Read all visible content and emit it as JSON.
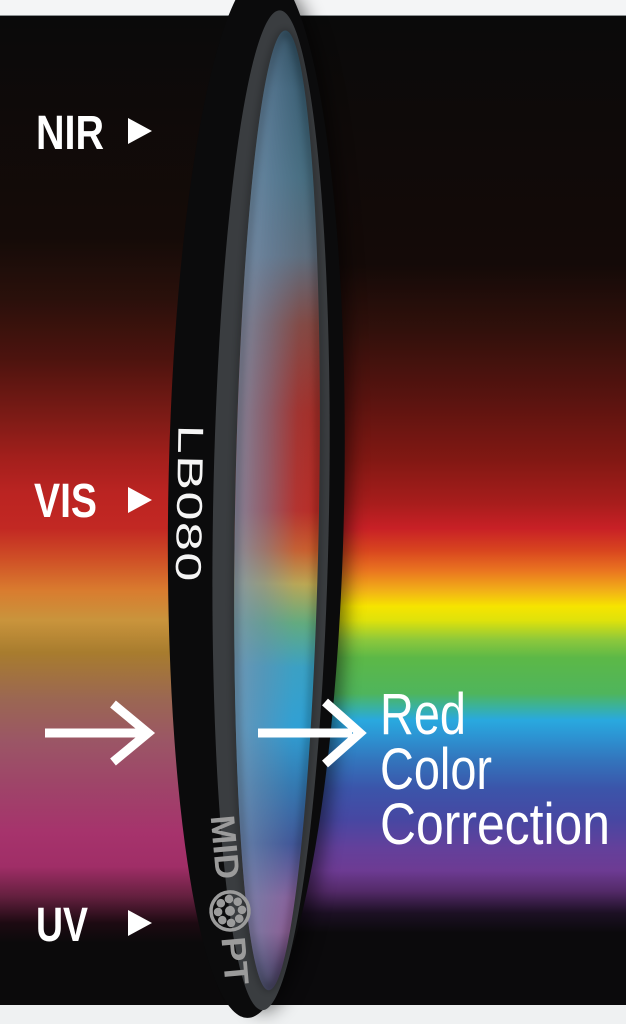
{
  "spectrum_labels": {
    "nir": "NIR",
    "vis": "VIS",
    "uv": "UV"
  },
  "ring": {
    "model": "LB080",
    "brand_prefix": "MID",
    "brand_suffix": "PT"
  },
  "caption": {
    "line1": "Red",
    "line2": "Color",
    "line3": "Correction"
  },
  "colors": {
    "label_text": "#ffffff",
    "arrow": "#ffffff",
    "ring_black": "#0b0b0c",
    "ring_bevel": "#3a3d40",
    "brand_gray": "#9b9b9b",
    "model_text": "#f5f5f5",
    "top_strip": "#f4f5f6",
    "top_strip_edge": "#8d9294",
    "bottom_strip": "#eff1f2"
  },
  "gradients": {
    "left_spectrum": [
      {
        "o": 0,
        "c": "#0a0a0a"
      },
      {
        "o": 0.225,
        "c": "#150b08"
      },
      {
        "o": 0.286,
        "c": "#2a100b"
      },
      {
        "o": 0.346,
        "c": "#4c130e"
      },
      {
        "o": 0.407,
        "c": "#7e1b16"
      },
      {
        "o": 0.447,
        "c": "#a31f1c"
      },
      {
        "o": 0.483,
        "c": "#bb2422"
      },
      {
        "o": 0.518,
        "c": "#c22823"
      },
      {
        "o": 0.549,
        "c": "#cf4f26"
      },
      {
        "o": 0.581,
        "c": "#d97c2f"
      },
      {
        "o": 0.611,
        "c": "#c9943c"
      },
      {
        "o": 0.644,
        "c": "#a87c2e"
      },
      {
        "o": 0.69,
        "c": "#9b6752"
      },
      {
        "o": 0.735,
        "c": "#9b5566"
      },
      {
        "o": 0.781,
        "c": "#9f4369"
      },
      {
        "o": 0.826,
        "c": "#a6336c"
      },
      {
        "o": 0.86,
        "c": "#a02e67"
      },
      {
        "o": 0.89,
        "c": "#64203f"
      },
      {
        "o": 0.917,
        "c": "#1d0a12"
      },
      {
        "o": 0.937,
        "c": "#0b0a0b"
      },
      {
        "o": 1,
        "c": "#0b0a0b"
      }
    ],
    "right_spectrum": [
      {
        "o": 0,
        "c": "#0a0a0a"
      },
      {
        "o": 0.251,
        "c": "#140a08"
      },
      {
        "o": 0.316,
        "c": "#30100b"
      },
      {
        "o": 0.382,
        "c": "#56130f"
      },
      {
        "o": 0.448,
        "c": "#811813"
      },
      {
        "o": 0.493,
        "c": "#a81d1c"
      },
      {
        "o": 0.518,
        "c": "#c82026"
      },
      {
        "o": 0.54,
        "c": "#d8441f"
      },
      {
        "o": 0.561,
        "c": "#ea7520"
      },
      {
        "o": 0.581,
        "c": "#f2b018"
      },
      {
        "o": 0.597,
        "c": "#f6e400"
      },
      {
        "o": 0.611,
        "c": "#dfe20b"
      },
      {
        "o": 0.631,
        "c": "#8cc83c"
      },
      {
        "o": 0.649,
        "c": "#5cb847"
      },
      {
        "o": 0.685,
        "c": "#4fb55c"
      },
      {
        "o": 0.698,
        "c": "#3bb29b"
      },
      {
        "o": 0.712,
        "c": "#29a9df"
      },
      {
        "o": 0.727,
        "c": "#2c96d4"
      },
      {
        "o": 0.753,
        "c": "#3374bc"
      },
      {
        "o": 0.781,
        "c": "#3b55aa"
      },
      {
        "o": 0.813,
        "c": "#4747a2"
      },
      {
        "o": 0.841,
        "c": "#63409b"
      },
      {
        "o": 0.864,
        "c": "#6d3b93"
      },
      {
        "o": 0.885,
        "c": "#532a68"
      },
      {
        "o": 0.907,
        "c": "#1c1024"
      },
      {
        "o": 0.927,
        "c": "#0b0a0c"
      },
      {
        "o": 1,
        "c": "#0b0a0c"
      }
    ],
    "glass_vertical": [
      {
        "o": 0,
        "c": "#16333f"
      },
      {
        "o": 0.07,
        "c": "#34596c"
      },
      {
        "o": 0.16,
        "c": "#446b7d"
      },
      {
        "o": 0.24,
        "c": "#5b6a79"
      },
      {
        "o": 0.31,
        "c": "#84443c"
      },
      {
        "o": 0.4,
        "c": "#a62b24"
      },
      {
        "o": 0.5,
        "c": "#bb2a23"
      },
      {
        "o": 0.54,
        "c": "#cd5c28"
      },
      {
        "o": 0.575,
        "c": "#bfa94f"
      },
      {
        "o": 0.615,
        "c": "#61ad7c"
      },
      {
        "o": 0.66,
        "c": "#37a2c6"
      },
      {
        "o": 0.72,
        "c": "#2ba2d8"
      },
      {
        "o": 0.78,
        "c": "#2f78b2"
      },
      {
        "o": 0.84,
        "c": "#3e5397"
      },
      {
        "o": 0.895,
        "c": "#8a5f9b"
      },
      {
        "o": 0.93,
        "c": "#8f5a92"
      },
      {
        "o": 0.965,
        "c": "#50345f"
      },
      {
        "o": 1,
        "c": "#221a2c"
      }
    ],
    "glass_overlay": [
      {
        "o": 0,
        "c": "#7e97b2",
        "a": 0.85
      },
      {
        "o": 0.38,
        "c": "#6f8cab",
        "a": 0.5
      },
      {
        "o": 0.72,
        "c": "#6f8cab",
        "a": 0.1
      },
      {
        "o": 1,
        "c": "#6f8cab",
        "a": 0
      }
    ]
  }
}
